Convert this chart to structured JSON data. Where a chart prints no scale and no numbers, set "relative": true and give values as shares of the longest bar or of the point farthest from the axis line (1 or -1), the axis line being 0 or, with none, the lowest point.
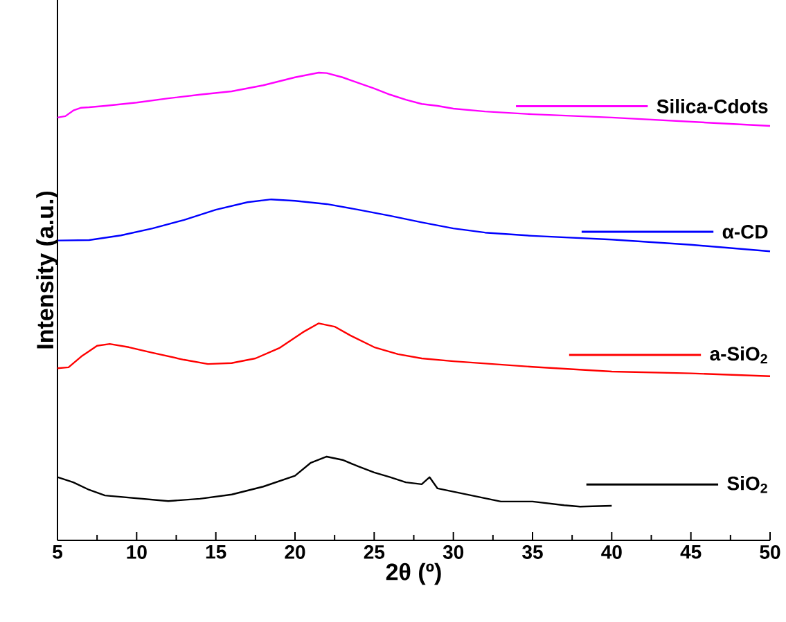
{
  "chart_data": {
    "type": "line",
    "relative": true,
    "xlabel": "2θ (º)",
    "ylabel": "Intensity (a.u.)",
    "xlim": [
      5,
      50
    ],
    "xticks": [
      5,
      10,
      15,
      20,
      25,
      30,
      35,
      40,
      45,
      50
    ],
    "grid": false,
    "marker": "none",
    "line_style": "solid",
    "series": [
      {
        "name": "SiO$_{2}$",
        "color": "#000000",
        "x": [
          5,
          6,
          7,
          8,
          10,
          12,
          14,
          16,
          18,
          20,
          21,
          22,
          23,
          24,
          25,
          26,
          27,
          28,
          28.5,
          29,
          30,
          32,
          33,
          35,
          37,
          38,
          40
        ],
        "values": [
          0.135,
          0.124,
          0.108,
          0.096,
          0.09,
          0.084,
          0.089,
          0.098,
          0.115,
          0.138,
          0.166,
          0.179,
          0.172,
          0.158,
          0.145,
          0.135,
          0.124,
          0.12,
          0.135,
          0.111,
          0.104,
          0.09,
          0.083,
          0.083,
          0.075,
          0.072,
          0.074
        ]
      },
      {
        "name": "a-SiO$_{2}$",
        "color": "#ff0000",
        "x": [
          5,
          5.7,
          6.5,
          7.5,
          8.3,
          9.5,
          11,
          13,
          14.5,
          16,
          17.5,
          19,
          20.5,
          21.5,
          22.5,
          23.5,
          25,
          26.5,
          28,
          30,
          35,
          40,
          45,
          50
        ],
        "values": [
          0.368,
          0.37,
          0.393,
          0.416,
          0.42,
          0.413,
          0.401,
          0.386,
          0.377,
          0.379,
          0.389,
          0.411,
          0.445,
          0.464,
          0.457,
          0.438,
          0.413,
          0.398,
          0.389,
          0.383,
          0.371,
          0.361,
          0.357,
          0.351
        ]
      },
      {
        "name": "α-CD",
        "color": "#0000ff",
        "x": [
          5,
          7,
          9,
          11,
          13,
          15,
          17,
          18.5,
          20,
          22,
          24,
          26,
          28,
          30,
          32,
          35,
          40,
          45,
          50
        ],
        "values": [
          0.641,
          0.642,
          0.652,
          0.667,
          0.685,
          0.707,
          0.723,
          0.729,
          0.726,
          0.719,
          0.707,
          0.694,
          0.68,
          0.667,
          0.658,
          0.651,
          0.643,
          0.632,
          0.618
        ]
      },
      {
        "name": "Silica-Cdots",
        "color": "#ff00ff",
        "x": [
          5,
          5.5,
          6,
          6.5,
          7,
          8,
          10,
          12,
          14,
          16,
          18,
          20,
          21.5,
          22,
          23,
          24,
          25,
          26,
          27,
          28,
          29,
          30,
          32,
          35,
          40,
          45,
          50
        ],
        "values": [
          0.904,
          0.907,
          0.919,
          0.925,
          0.926,
          0.929,
          0.936,
          0.945,
          0.953,
          0.96,
          0.973,
          0.99,
          1.0,
          0.999,
          0.99,
          0.978,
          0.966,
          0.953,
          0.942,
          0.933,
          0.929,
          0.923,
          0.917,
          0.911,
          0.904,
          0.895,
          0.886
        ]
      }
    ]
  }
}
